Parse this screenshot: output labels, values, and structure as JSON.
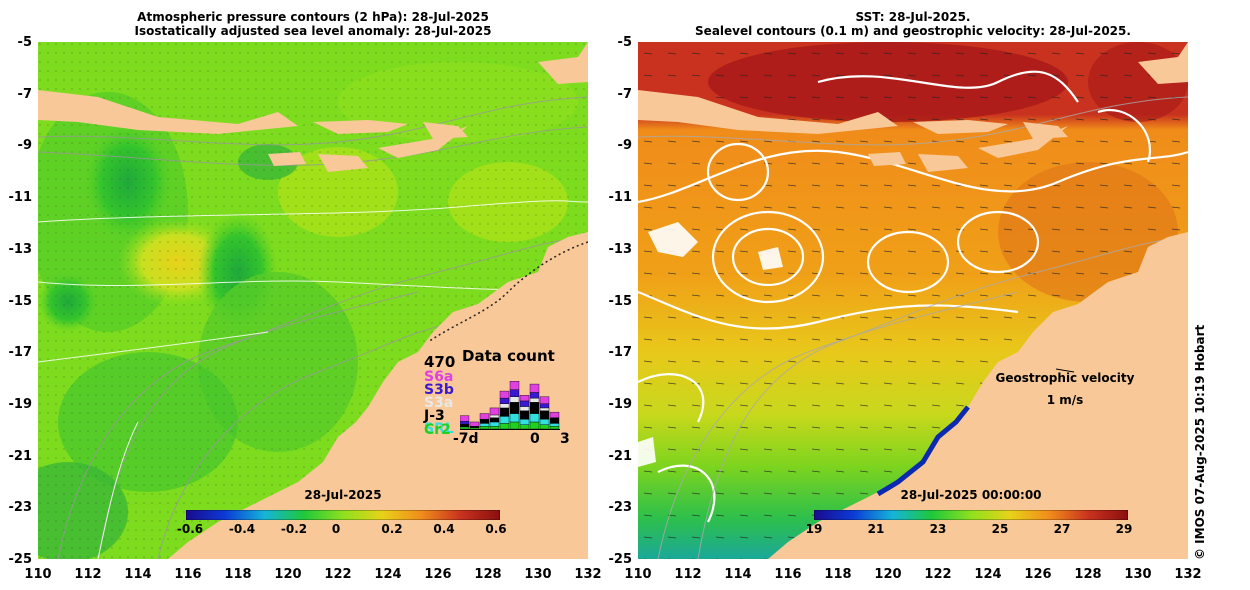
{
  "left_panel": {
    "title_line1": "Atmospheric pressure contours (2 hPa): 28-Jul-2025",
    "title_line2": "Isostatically adjusted sea level anomaly: 28-Jul-2025",
    "colorbar": {
      "date_label": "28-Jul-2025",
      "tick_labels": [
        "-0.6",
        "-0.4",
        "-0.2",
        "0",
        "0.2",
        "0.4",
        "0.6"
      ],
      "range": [
        -0.6,
        0.6
      ],
      "colors": [
        "#1a0a8c",
        "#0b3bd6",
        "#15b4d8",
        "#1ec83a",
        "#8ee01e",
        "#e8d21a",
        "#f08c1a",
        "#c8321e",
        "#8a0f0f"
      ]
    },
    "data_count": {
      "title": "Data count",
      "max_label": "470",
      "satellites": [
        {
          "name": "S6a",
          "color": "#e040e0"
        },
        {
          "name": "S3b",
          "color": "#3a1ad0"
        },
        {
          "name": "S3a",
          "color": "#e8e8e8"
        },
        {
          "name": "J-3",
          "color": "#000000"
        },
        {
          "name": "SRL",
          "color": "#33e0e0"
        },
        {
          "name": "Cr2",
          "color": "#22d022"
        }
      ],
      "x_labels": [
        "-7d",
        "0",
        "3"
      ],
      "bars": [
        [
          40,
          20,
          0,
          20,
          0,
          15,
          60
        ],
        [
          30,
          0,
          0,
          10,
          0,
          10,
          40
        ],
        [
          40,
          0,
          0,
          30,
          20,
          20,
          60
        ],
        [
          50,
          0,
          20,
          30,
          30,
          20,
          70
        ],
        [
          50,
          40,
          30,
          60,
          50,
          40,
          90
        ],
        [
          60,
          50,
          40,
          80,
          60,
          50,
          110
        ],
        [
          40,
          40,
          30,
          60,
          40,
          30,
          90
        ],
        [
          60,
          40,
          30,
          80,
          60,
          50,
          100
        ],
        [
          50,
          30,
          20,
          60,
          40,
          30,
          80
        ],
        [
          40,
          0,
          0,
          40,
          20,
          20,
          60
        ]
      ]
    }
  },
  "right_panel": {
    "title_line1": "SST: 28-Jul-2025.",
    "title_line2": "Sealevel contours (0.1 m) and geostrophic velocity: 28-Jul-2025.",
    "colorbar": {
      "date_label": "28-Jul-2025 00:00:00",
      "tick_labels": [
        "19",
        "21",
        "23",
        "25",
        "27",
        "29"
      ],
      "range": [
        19,
        29
      ],
      "colors": [
        "#1a0a8c",
        "#0b3bd6",
        "#15b4d8",
        "#1ec83a",
        "#8ee01e",
        "#e8d21a",
        "#f08c1a",
        "#c8321e",
        "#8a0f0f"
      ]
    },
    "legend_title": "Geostrophic velocity",
    "legend_scale": "1 m/s"
  },
  "axes": {
    "latitudes": [
      "-5",
      "-7",
      "-9",
      "-11",
      "-13",
      "-15",
      "-17",
      "-19",
      "-21",
      "-23",
      "-25"
    ],
    "longitudes": [
      "110",
      "112",
      "114",
      "116",
      "118",
      "120",
      "122",
      "124",
      "126",
      "128",
      "130",
      "132"
    ],
    "lat_range": [
      -25,
      -5
    ],
    "lon_range": [
      110,
      132
    ]
  },
  "credit": "© IMOS 07-Aug-2025 10:19 Hobart",
  "colors": {
    "land": "#f8c898",
    "sla_background": "#7edc1e",
    "sst_background": "#f09a18"
  }
}
